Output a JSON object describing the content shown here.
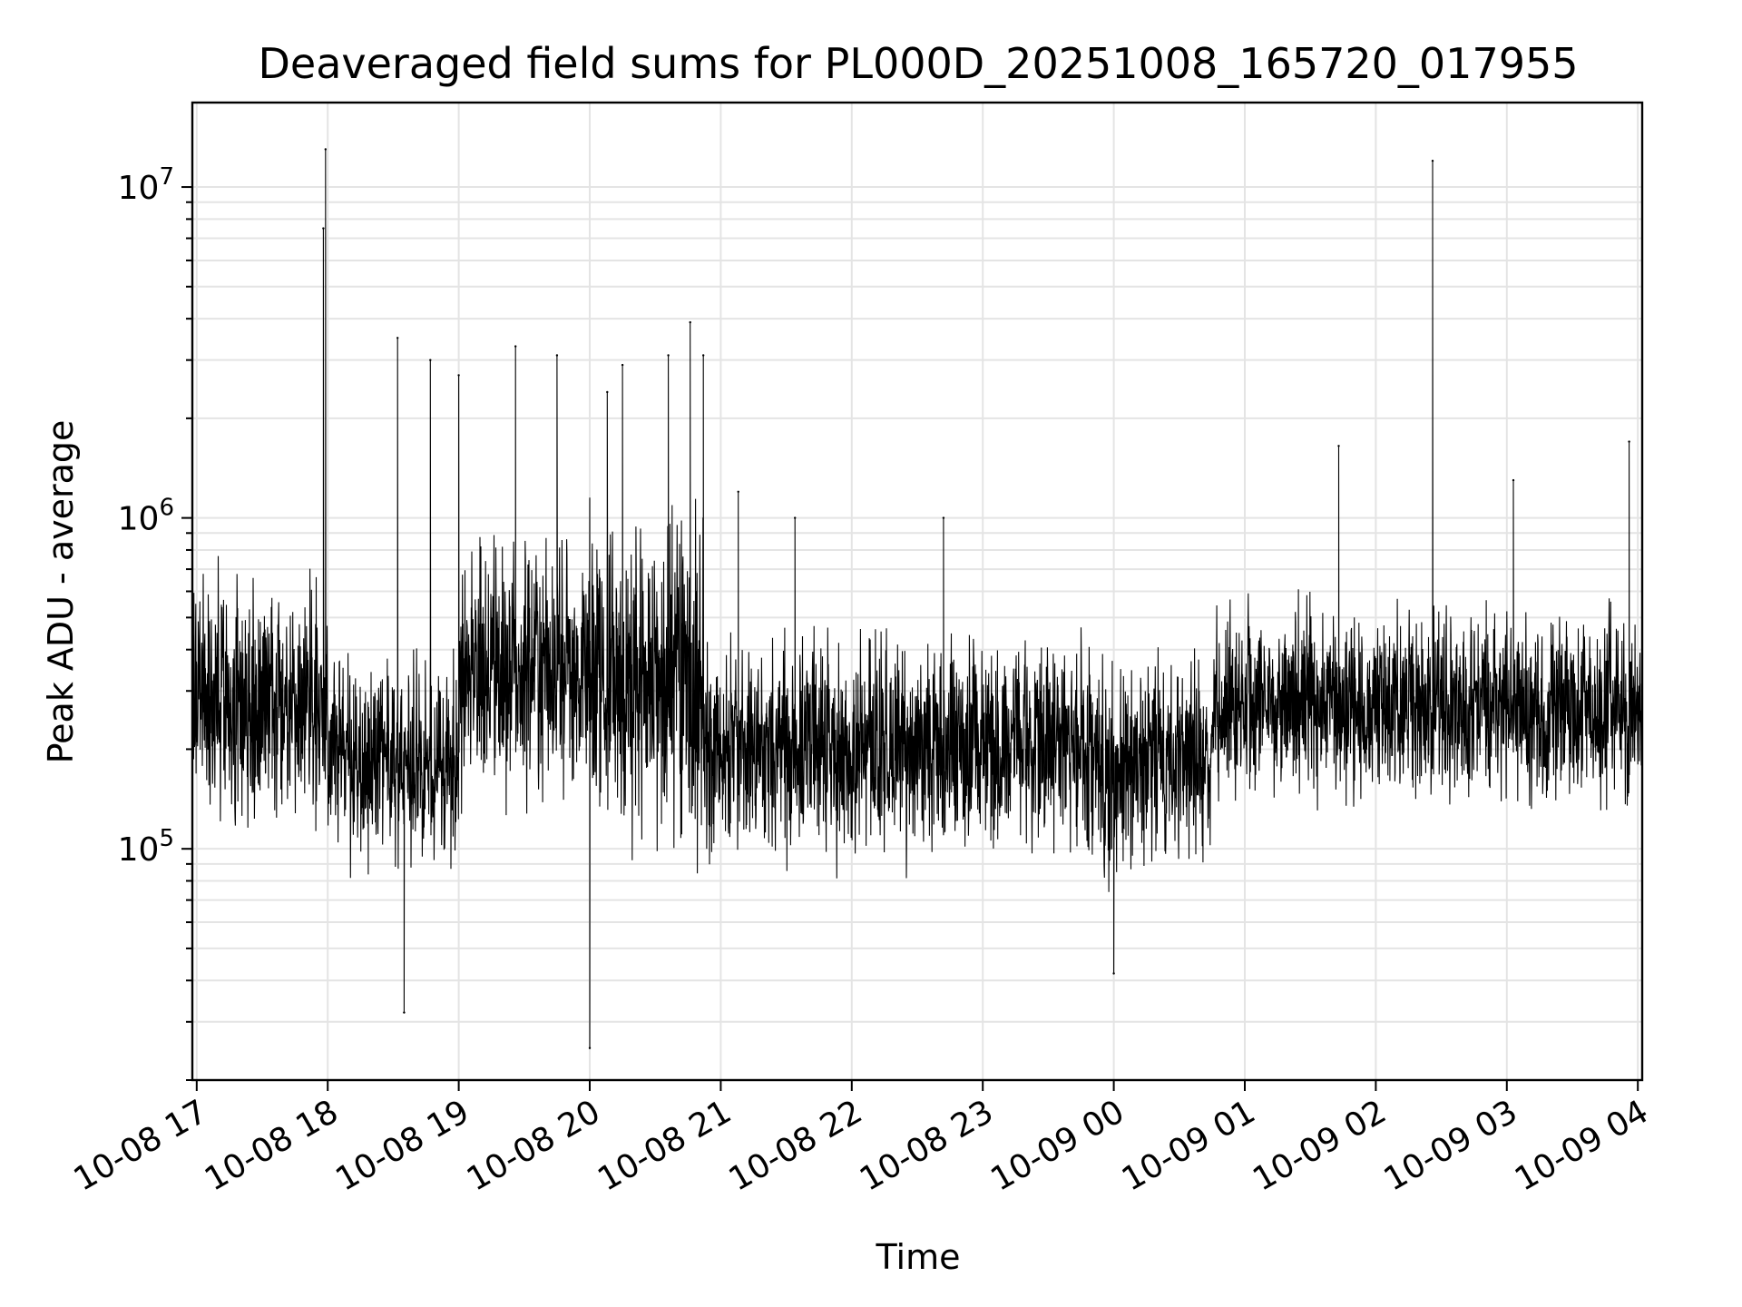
{
  "chart_data": {
    "type": "line",
    "title": "Deaveraged field sums for PL000D_20251008_165720_017955",
    "xlabel": "Time",
    "ylabel": "Peak ADU - average",
    "yscale": "log",
    "ylim": [
      20000,
      18000000
    ],
    "xlim": [
      "2025-10-08 16:58",
      "2025-10-09 04:02"
    ],
    "grid": true,
    "line_color": "#000000",
    "x_ticks": [
      {
        "at": "2025-10-08 17:00",
        "label": "10-08 17"
      },
      {
        "at": "2025-10-08 18:00",
        "label": "10-08 18"
      },
      {
        "at": "2025-10-08 19:00",
        "label": "10-08 19"
      },
      {
        "at": "2025-10-08 20:00",
        "label": "10-08 20"
      },
      {
        "at": "2025-10-08 21:00",
        "label": "10-08 21"
      },
      {
        "at": "2025-10-08 22:00",
        "label": "10-08 22"
      },
      {
        "at": "2025-10-08 23:00",
        "label": "10-08 23"
      },
      {
        "at": "2025-10-09 00:00",
        "label": "10-09 00"
      },
      {
        "at": "2025-10-09 01:00",
        "label": "10-09 01"
      },
      {
        "at": "2025-10-09 02:00",
        "label": "10-09 02"
      },
      {
        "at": "2025-10-09 03:00",
        "label": "10-09 03"
      },
      {
        "at": "2025-10-09 04:00",
        "label": "10-09 04"
      }
    ],
    "y_ticks": [
      {
        "value": 100000,
        "base": "10",
        "exp": "5"
      },
      {
        "value": 1000000,
        "base": "10",
        "exp": "6"
      },
      {
        "value": 10000000,
        "base": "10",
        "exp": "7"
      }
    ],
    "series": [
      {
        "typical_range_by_hour": [
          {
            "start": "2025-10-08 16:58",
            "end": "2025-10-08 18:00",
            "low": 90000,
            "high": 900000
          },
          {
            "start": "2025-10-08 18:00",
            "end": "2025-10-08 19:00",
            "low": 70000,
            "high": 500000
          },
          {
            "start": "2025-10-08 19:00",
            "end": "2025-10-08 20:00",
            "low": 100000,
            "high": 1200000
          },
          {
            "start": "2025-10-08 20:00",
            "end": "2025-10-08 20:52",
            "low": 70000,
            "high": 1500000
          },
          {
            "start": "2025-10-08 20:52",
            "end": "2025-10-08 23:50",
            "low": 75000,
            "high": 550000
          },
          {
            "start": "2025-10-08 23:50",
            "end": "2025-10-09 00:45",
            "low": 65000,
            "high": 500000
          },
          {
            "start": "2025-10-09 00:45",
            "end": "2025-10-09 04:02",
            "low": 110000,
            "high": 650000
          }
        ],
        "notable_points": [
          {
            "x": "2025-10-08 17:58",
            "y": 7500000
          },
          {
            "x": "2025-10-08 17:59",
            "y": 13000000
          },
          {
            "x": "2025-10-08 18:32",
            "y": 3500000
          },
          {
            "x": "2025-10-08 18:35",
            "y": 32000
          },
          {
            "x": "2025-10-08 18:47",
            "y": 3000000
          },
          {
            "x": "2025-10-08 19:00",
            "y": 2700000
          },
          {
            "x": "2025-10-08 19:26",
            "y": 3300000
          },
          {
            "x": "2025-10-08 19:45",
            "y": 3100000
          },
          {
            "x": "2025-10-08 20:00",
            "y": 25000
          },
          {
            "x": "2025-10-08 20:08",
            "y": 2400000
          },
          {
            "x": "2025-10-08 20:15",
            "y": 2900000
          },
          {
            "x": "2025-10-08 20:36",
            "y": 3100000
          },
          {
            "x": "2025-10-08 20:46",
            "y": 3900000
          },
          {
            "x": "2025-10-08 20:52",
            "y": 3100000
          },
          {
            "x": "2025-10-08 21:08",
            "y": 1200000
          },
          {
            "x": "2025-10-08 21:34",
            "y": 1000000
          },
          {
            "x": "2025-10-08 22:42",
            "y": 1000000
          },
          {
            "x": "2025-10-09 00:00",
            "y": 42000
          },
          {
            "x": "2025-10-09 01:43",
            "y": 1650000
          },
          {
            "x": "2025-10-09 02:26",
            "y": 12000000
          },
          {
            "x": "2025-10-09 03:03",
            "y": 1300000
          },
          {
            "x": "2025-10-09 03:56",
            "y": 1700000
          }
        ]
      }
    ]
  }
}
